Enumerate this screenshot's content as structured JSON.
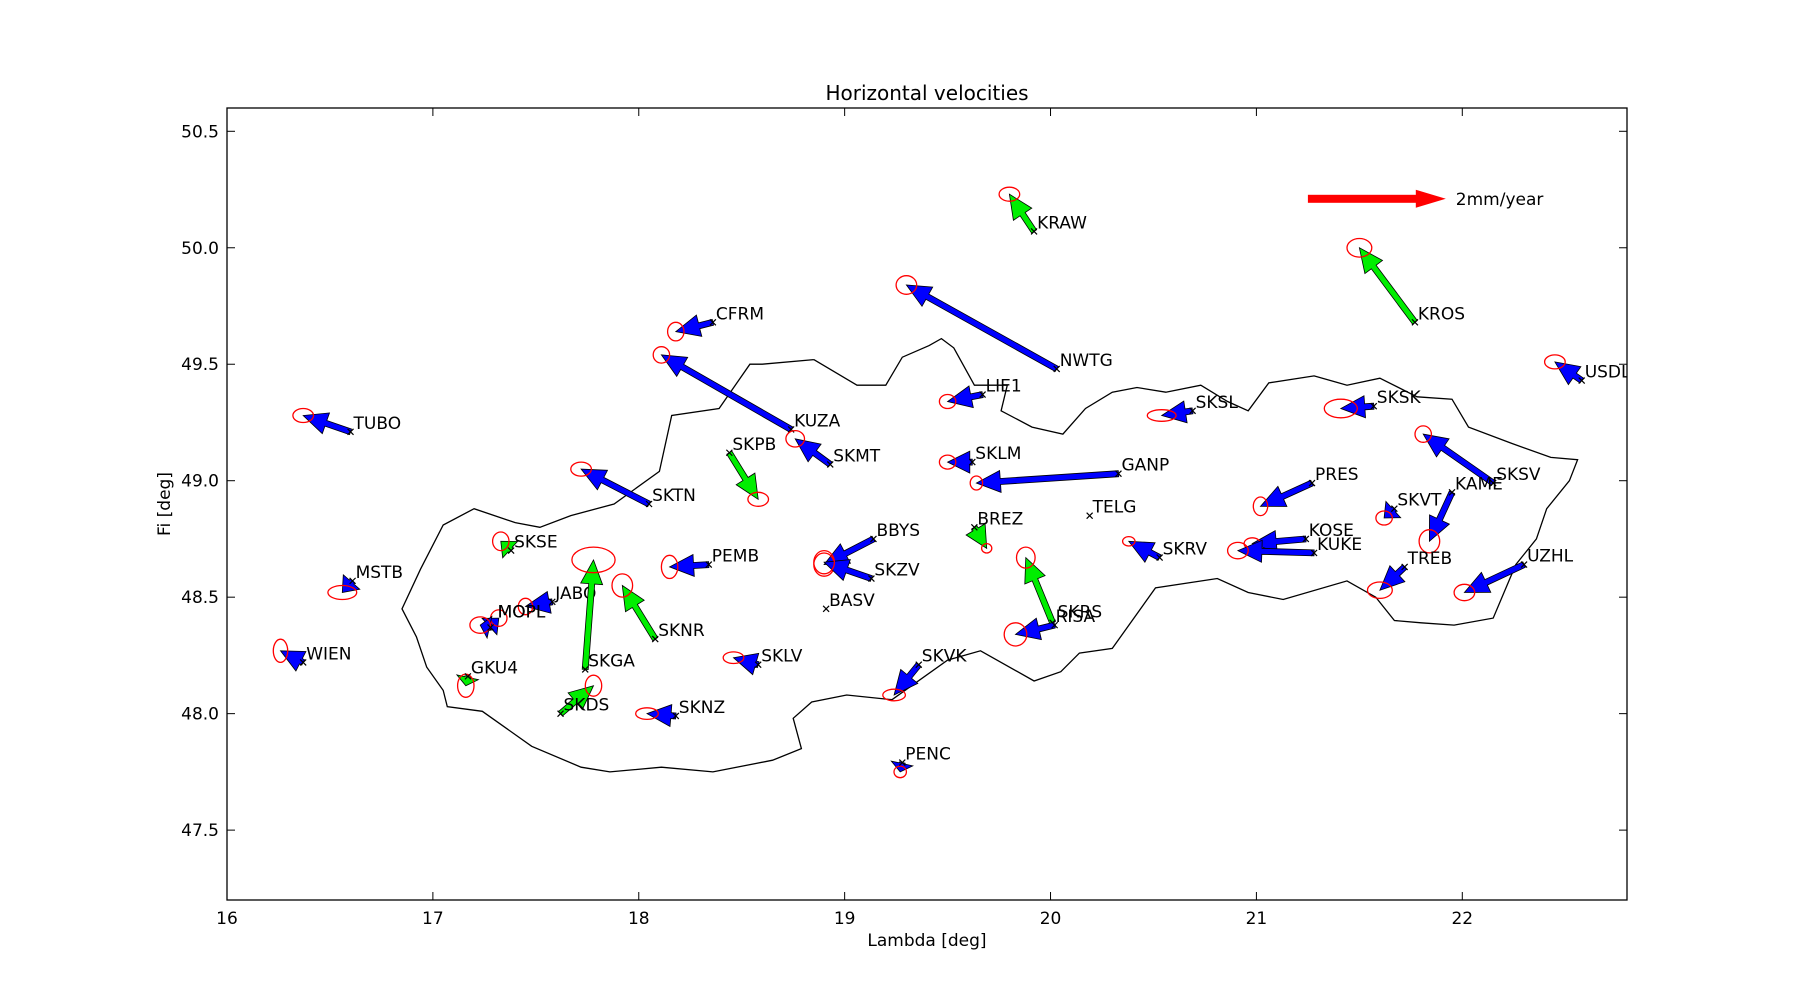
{
  "chart_data": {
    "type": "scatter",
    "title": "Horizontal velocities",
    "xlabel": "Lambda [deg]",
    "ylabel": "Fi [deg]",
    "xlim": [
      16.0,
      22.8
    ],
    "ylim": [
      47.2,
      50.6
    ],
    "xticks": [
      16,
      17,
      18,
      19,
      20,
      21,
      22
    ],
    "yticks": [
      47.5,
      48.0,
      48.5,
      49.0,
      49.5,
      50.0,
      50.5
    ],
    "xtick_labels": [
      "16",
      "17",
      "18",
      "19",
      "20",
      "21",
      "22"
    ],
    "ytick_labels": [
      "47.5",
      "48.0",
      "48.5",
      "49.0",
      "49.5",
      "50.0",
      "50.5"
    ],
    "grid": false,
    "colors": {
      "arrow_blue": "#0000ff",
      "arrow_green": "#00ee00",
      "ellipse": "#ff0000",
      "scale_arrow": "#ff0000",
      "border": "#000000"
    },
    "scale_arrow": {
      "label": "2mm/year",
      "x": 21.25,
      "y": 50.21,
      "dx": 0.67
    },
    "stations": [
      {
        "name": "KRAW",
        "lon": 19.92,
        "lat": 50.07,
        "dx": -0.12,
        "dy": 0.16,
        "group": "green",
        "ex": 0.05,
        "ey": 0.03
      },
      {
        "name": "KROS",
        "lon": 21.77,
        "lat": 49.68,
        "dx": -0.27,
        "dy": 0.32,
        "group": "green",
        "ex": 0.06,
        "ey": 0.04
      },
      {
        "name": "CFRM",
        "lon": 18.36,
        "lat": 49.68,
        "dx": -0.18,
        "dy": -0.04,
        "group": "blue",
        "ex": 0.04,
        "ey": 0.04
      },
      {
        "name": "NWTG",
        "lon": 20.03,
        "lat": 49.48,
        "dx": -0.73,
        "dy": 0.36,
        "group": "blue",
        "ex": 0.05,
        "ey": 0.04
      },
      {
        "name": "USDL",
        "lon": 22.58,
        "lat": 49.43,
        "dx": -0.13,
        "dy": 0.08,
        "group": "blue",
        "ex": 0.05,
        "ey": 0.03
      },
      {
        "name": "LIE1",
        "lon": 19.67,
        "lat": 49.37,
        "dx": -0.17,
        "dy": -0.03,
        "group": "blue",
        "ex": 0.04,
        "ey": 0.03
      },
      {
        "name": "SKSL",
        "lon": 20.69,
        "lat": 49.3,
        "dx": -0.15,
        "dy": -0.02,
        "group": "blue",
        "ex": 0.07,
        "ey": 0.025
      },
      {
        "name": "SKSK",
        "lon": 21.57,
        "lat": 49.32,
        "dx": -0.16,
        "dy": -0.01,
        "group": "blue",
        "ex": 0.08,
        "ey": 0.04
      },
      {
        "name": "TUBO",
        "lon": 16.6,
        "lat": 49.21,
        "dx": -0.23,
        "dy": 0.07,
        "group": "blue",
        "ex": 0.05,
        "ey": 0.03
      },
      {
        "name": "KUZA",
        "lon": 18.74,
        "lat": 49.22,
        "dx": -0.63,
        "dy": 0.32,
        "group": "blue",
        "ex": 0.04,
        "ey": 0.035
      },
      {
        "name": "SKMT",
        "lon": 18.93,
        "lat": 49.07,
        "dx": -0.17,
        "dy": 0.11,
        "group": "blue",
        "ex": 0.045,
        "ey": 0.035
      },
      {
        "name": "SKPB",
        "lon": 18.44,
        "lat": 49.12,
        "dx": 0.14,
        "dy": -0.2,
        "group": "green",
        "ex": 0.05,
        "ey": 0.03
      },
      {
        "name": "SKLM",
        "lon": 19.62,
        "lat": 49.08,
        "dx": -0.12,
        "dy": 0.0,
        "group": "blue",
        "ex": 0.04,
        "ey": 0.03
      },
      {
        "name": "GANP",
        "lon": 20.33,
        "lat": 49.03,
        "dx": -0.69,
        "dy": -0.04,
        "group": "blue",
        "ex": 0.03,
        "ey": 0.03
      },
      {
        "name": "PRES",
        "lon": 21.27,
        "lat": 48.99,
        "dx": -0.25,
        "dy": -0.1,
        "group": "blue",
        "ex": 0.035,
        "ey": 0.04
      },
      {
        "name": "SKSV",
        "lon": 22.15,
        "lat": 48.99,
        "dx": -0.34,
        "dy": 0.21,
        "group": "blue",
        "ex": 0.04,
        "ey": 0.035
      },
      {
        "name": "SKTN",
        "lon": 18.05,
        "lat": 48.9,
        "dx": -0.33,
        "dy": 0.15,
        "group": "blue",
        "ex": 0.05,
        "ey": 0.03
      },
      {
        "name": "KAME",
        "lon": 21.95,
        "lat": 48.95,
        "dx": -0.11,
        "dy": -0.21,
        "group": "blue",
        "ex": 0.05,
        "ey": 0.05
      },
      {
        "name": "SKVT",
        "lon": 21.67,
        "lat": 48.88,
        "dx": -0.05,
        "dy": -0.04,
        "group": "blue",
        "ex": 0.04,
        "ey": 0.03
      },
      {
        "name": "TELG",
        "lon": 20.19,
        "lat": 48.85,
        "dx": 0.0,
        "dy": 0.0,
        "group": "none"
      },
      {
        "name": "BREZ",
        "lon": 19.63,
        "lat": 48.8,
        "dx": 0.06,
        "dy": -0.09,
        "group": "green",
        "ex": 0.025,
        "ey": 0.02
      },
      {
        "name": "BBYS",
        "lon": 19.14,
        "lat": 48.75,
        "dx": -0.24,
        "dy": -0.11,
        "group": "blue",
        "ex": 0.05,
        "ey": 0.05
      },
      {
        "name": "SKSE",
        "lon": 17.38,
        "lat": 48.7,
        "dx": -0.05,
        "dy": 0.04,
        "group": "green",
        "ex": 0.04,
        "ey": 0.04
      },
      {
        "name": "KOSE",
        "lon": 21.24,
        "lat": 48.75,
        "dx": -0.26,
        "dy": -0.02,
        "group": "blue",
        "ex": 0.04,
        "ey": 0.025
      },
      {
        "name": "KUKE",
        "lon": 21.28,
        "lat": 48.69,
        "dx": -0.37,
        "dy": 0.01,
        "group": "blue",
        "ex": 0.05,
        "ey": 0.035
      },
      {
        "name": "SKRV",
        "lon": 20.53,
        "lat": 48.67,
        "dx": -0.15,
        "dy": 0.07,
        "group": "blue",
        "ex": 0.03,
        "ey": 0.02
      },
      {
        "name": "PEMB",
        "lon": 18.34,
        "lat": 48.64,
        "dx": -0.19,
        "dy": -0.01,
        "group": "blue",
        "ex": 0.04,
        "ey": 0.05
      },
      {
        "name": "SKZV",
        "lon": 19.13,
        "lat": 48.58,
        "dx": -0.23,
        "dy": 0.07,
        "group": "blue",
        "ex": 0.05,
        "ey": 0.05
      },
      {
        "name": "MSTB",
        "lon": 16.61,
        "lat": 48.57,
        "dx": -0.05,
        "dy": -0.05,
        "group": "blue",
        "ex": 0.07,
        "ey": 0.03
      },
      {
        "name": "TREB",
        "lon": 21.72,
        "lat": 48.63,
        "dx": -0.12,
        "dy": -0.1,
        "group": "blue",
        "ex": 0.06,
        "ey": 0.035
      },
      {
        "name": "UZHL",
        "lon": 22.3,
        "lat": 48.64,
        "dx": -0.29,
        "dy": -0.12,
        "group": "blue",
        "ex": 0.05,
        "ey": 0.035
      },
      {
        "name": "JABO",
        "lon": 17.58,
        "lat": 48.48,
        "dx": -0.13,
        "dy": -0.02,
        "group": "blue",
        "ex": 0.035,
        "ey": 0.035
      },
      {
        "name": "BASV",
        "lon": 18.91,
        "lat": 48.45,
        "dx": 0.0,
        "dy": 0.0,
        "group": "none"
      },
      {
        "name": "SKRS",
        "lon": 20.01,
        "lat": 48.39,
        "dx": -0.13,
        "dy": 0.28,
        "group": "green",
        "ex": 0.045,
        "ey": 0.045
      },
      {
        "name": "RISA",
        "lon": 20.02,
        "lat": 48.38,
        "dx": -0.19,
        "dy": -0.04,
        "group": "blue",
        "ex": 0.055,
        "ey": 0.05
      },
      {
        "name": "MOPI",
        "lon": 17.27,
        "lat": 48.37,
        "dx": 0.05,
        "dy": 0.04,
        "group": "blue",
        "ex": 0.04,
        "ey": 0.035
      },
      {
        "name": "MOPL",
        "lon": 17.28,
        "lat": 48.37,
        "dx": -0.05,
        "dy": 0.01,
        "group": "blue",
        "ex": 0.05,
        "ey": 0.035
      },
      {
        "name": "SKNR",
        "lon": 18.08,
        "lat": 48.32,
        "dx": -0.16,
        "dy": 0.23,
        "group": "green",
        "ex": 0.05,
        "ey": 0.05
      },
      {
        "name": "WIEN",
        "lon": 16.37,
        "lat": 48.22,
        "dx": -0.11,
        "dy": 0.05,
        "group": "blue",
        "ex": 0.035,
        "ey": 0.05
      },
      {
        "name": "SKLV",
        "lon": 18.58,
        "lat": 48.21,
        "dx": -0.12,
        "dy": 0.03,
        "group": "blue",
        "ex": 0.05,
        "ey": 0.025
      },
      {
        "name": "SKGA",
        "lon": 17.74,
        "lat": 48.19,
        "dx": 0.04,
        "dy": 0.47,
        "group": "green",
        "ex": 0.105,
        "ey": 0.055
      },
      {
        "name": "SKVK",
        "lon": 19.36,
        "lat": 48.21,
        "dx": -0.12,
        "dy": -0.13,
        "group": "blue",
        "ex": 0.055,
        "ey": 0.025
      },
      {
        "name": "GKU4",
        "lon": 17.17,
        "lat": 48.16,
        "dx": -0.01,
        "dy": -0.04,
        "group": "green",
        "ex": 0.04,
        "ey": 0.05
      },
      {
        "name": "SKDS",
        "lon": 17.62,
        "lat": 48.0,
        "dx": 0.16,
        "dy": 0.12,
        "group": "green",
        "ex": 0.04,
        "ey": 0.045
      },
      {
        "name": "SKNZ",
        "lon": 18.18,
        "lat": 47.99,
        "dx": -0.14,
        "dy": 0.01,
        "group": "blue",
        "ex": 0.055,
        "ey": 0.025
      },
      {
        "name": "PENC",
        "lon": 19.28,
        "lat": 47.79,
        "dx": -0.01,
        "dy": -0.04,
        "group": "blue",
        "ex": 0.03,
        "ey": 0.025
      }
    ],
    "label_overrides": {
      "MOPI": {
        "lx": 17.3,
        "ly": 48.4
      },
      "MOPL": {
        "lx": 17.3,
        "ly": 48.4
      },
      "RISA": {
        "lx": 20.01,
        "ly": 48.38
      },
      "SKRS": {
        "lx": 20.02,
        "ly": 48.4
      }
    },
    "border": [
      [
        18.85,
        49.52
      ],
      [
        19.06,
        49.41
      ],
      [
        19.2,
        49.41
      ],
      [
        19.28,
        49.53
      ],
      [
        19.41,
        49.58
      ],
      [
        19.47,
        49.61
      ],
      [
        19.53,
        49.57
      ],
      [
        19.63,
        49.41
      ],
      [
        19.79,
        49.41
      ],
      [
        19.76,
        49.3
      ],
      [
        19.91,
        49.23
      ],
      [
        20.06,
        49.2
      ],
      [
        20.17,
        49.31
      ],
      [
        20.3,
        49.38
      ],
      [
        20.42,
        49.4
      ],
      [
        20.56,
        49.38
      ],
      [
        20.73,
        49.41
      ],
      [
        20.86,
        49.34
      ],
      [
        20.96,
        49.3
      ],
      [
        21.06,
        49.42
      ],
      [
        21.28,
        49.45
      ],
      [
        21.44,
        49.41
      ],
      [
        21.6,
        49.44
      ],
      [
        21.78,
        49.36
      ],
      [
        21.95,
        49.35
      ],
      [
        22.03,
        49.23
      ],
      [
        22.24,
        49.16
      ],
      [
        22.43,
        49.1
      ],
      [
        22.56,
        49.09
      ],
      [
        22.52,
        49.0
      ],
      [
        22.41,
        48.88
      ],
      [
        22.36,
        48.75
      ],
      [
        22.26,
        48.64
      ],
      [
        22.15,
        48.41
      ],
      [
        21.96,
        48.38
      ],
      [
        21.8,
        48.39
      ],
      [
        21.67,
        48.4
      ],
      [
        21.58,
        48.5
      ],
      [
        21.44,
        48.57
      ],
      [
        21.13,
        48.49
      ],
      [
        20.96,
        48.52
      ],
      [
        20.81,
        48.58
      ],
      [
        20.51,
        48.54
      ],
      [
        20.3,
        48.28
      ],
      [
        20.14,
        48.26
      ],
      [
        20.05,
        48.18
      ],
      [
        19.92,
        48.14
      ],
      [
        19.66,
        48.27
      ],
      [
        19.5,
        48.23
      ],
      [
        19.23,
        48.06
      ],
      [
        19.01,
        48.08
      ],
      [
        18.84,
        48.05
      ],
      [
        18.75,
        47.98
      ],
      [
        18.79,
        47.85
      ],
      [
        18.65,
        47.8
      ],
      [
        18.36,
        47.75
      ],
      [
        18.11,
        47.77
      ],
      [
        17.86,
        47.75
      ],
      [
        17.72,
        47.77
      ],
      [
        17.48,
        47.86
      ],
      [
        17.24,
        48.01
      ],
      [
        17.07,
        48.03
      ],
      [
        17.05,
        48.1
      ],
      [
        16.97,
        48.2
      ],
      [
        16.92,
        48.33
      ],
      [
        16.85,
        48.45
      ],
      [
        16.94,
        48.62
      ],
      [
        17.05,
        48.81
      ],
      [
        17.2,
        48.88
      ],
      [
        17.4,
        48.82
      ],
      [
        17.52,
        48.8
      ],
      [
        17.67,
        48.85
      ],
      [
        17.88,
        48.9
      ],
      [
        18.1,
        49.04
      ],
      [
        18.16,
        49.28
      ],
      [
        18.39,
        49.31
      ],
      [
        18.54,
        49.5
      ],
      [
        18.6,
        49.5
      ],
      [
        18.85,
        49.52
      ]
    ]
  }
}
